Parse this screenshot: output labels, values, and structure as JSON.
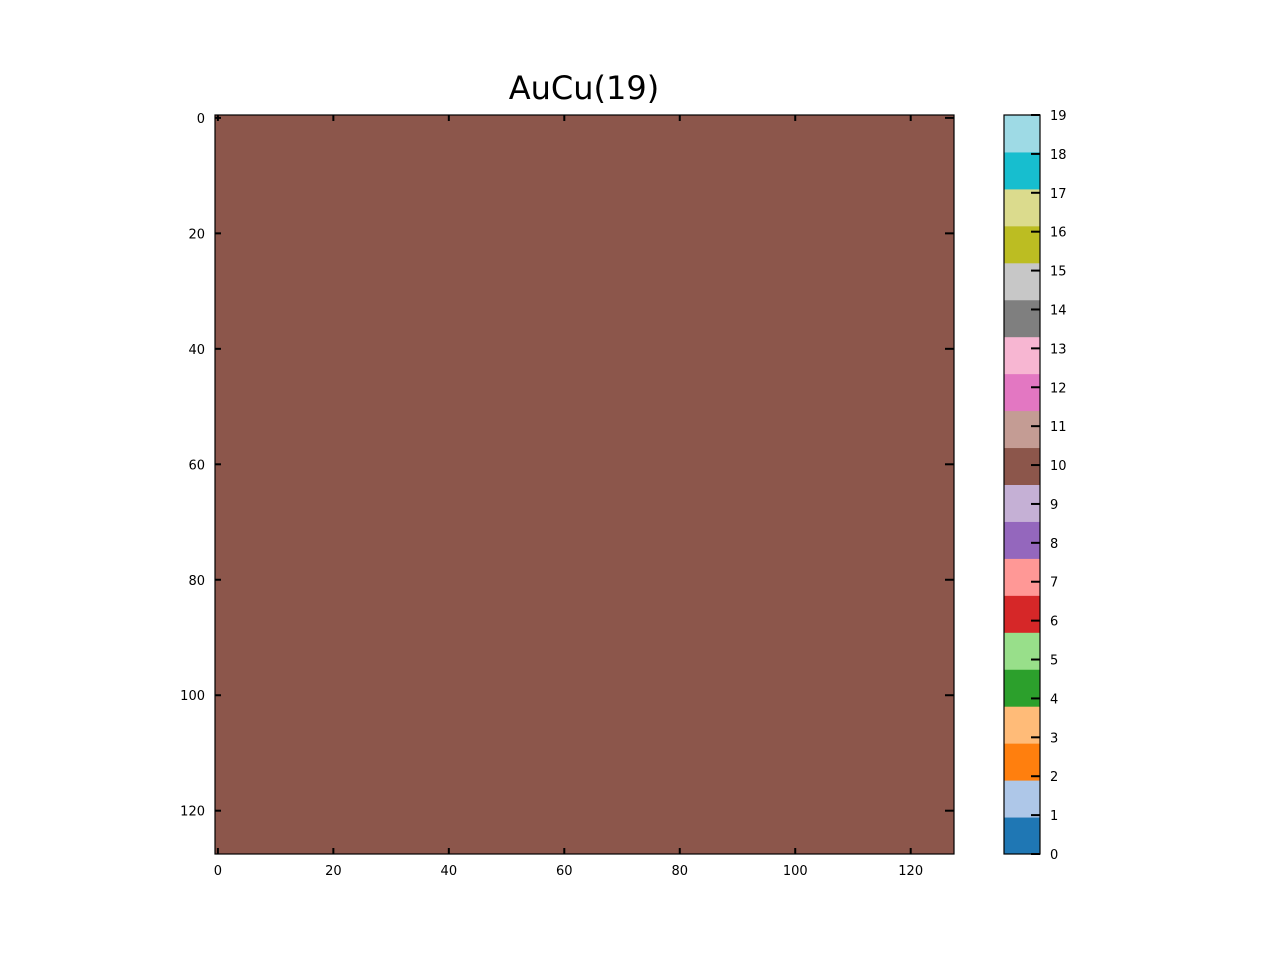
{
  "chart_data": {
    "type": "heatmap",
    "title": "AuCu(19)",
    "xlabel": "",
    "ylabel": "",
    "grid_size": [
      128,
      128
    ],
    "xlim": [
      -0.5,
      127.5
    ],
    "ylim": [
      127.5,
      -0.5
    ],
    "x_ticks": [
      0,
      20,
      40,
      60,
      80,
      100,
      120
    ],
    "y_ticks": [
      0,
      20,
      40,
      60,
      80,
      100,
      120
    ],
    "fill_value": 10,
    "grid_visible": false,
    "colorbar": {
      "placement": "right",
      "range": [
        0,
        19
      ],
      "ticks": [
        0,
        1,
        2,
        3,
        4,
        5,
        6,
        7,
        8,
        9,
        10,
        11,
        12,
        13,
        14,
        15,
        16,
        17,
        18,
        19
      ],
      "colors": [
        "#1f77b4",
        "#aec7e8",
        "#ff7f0e",
        "#ffbb78",
        "#2ca02c",
        "#98df8a",
        "#d62728",
        "#ff9896",
        "#9467bd",
        "#c5b0d5",
        "#8c564b",
        "#c49c94",
        "#e377c2",
        "#f7b6d2",
        "#7f7f7f",
        "#c7c7c7",
        "#bcbd22",
        "#dbdb8d",
        "#17becf",
        "#9edae5"
      ]
    }
  }
}
